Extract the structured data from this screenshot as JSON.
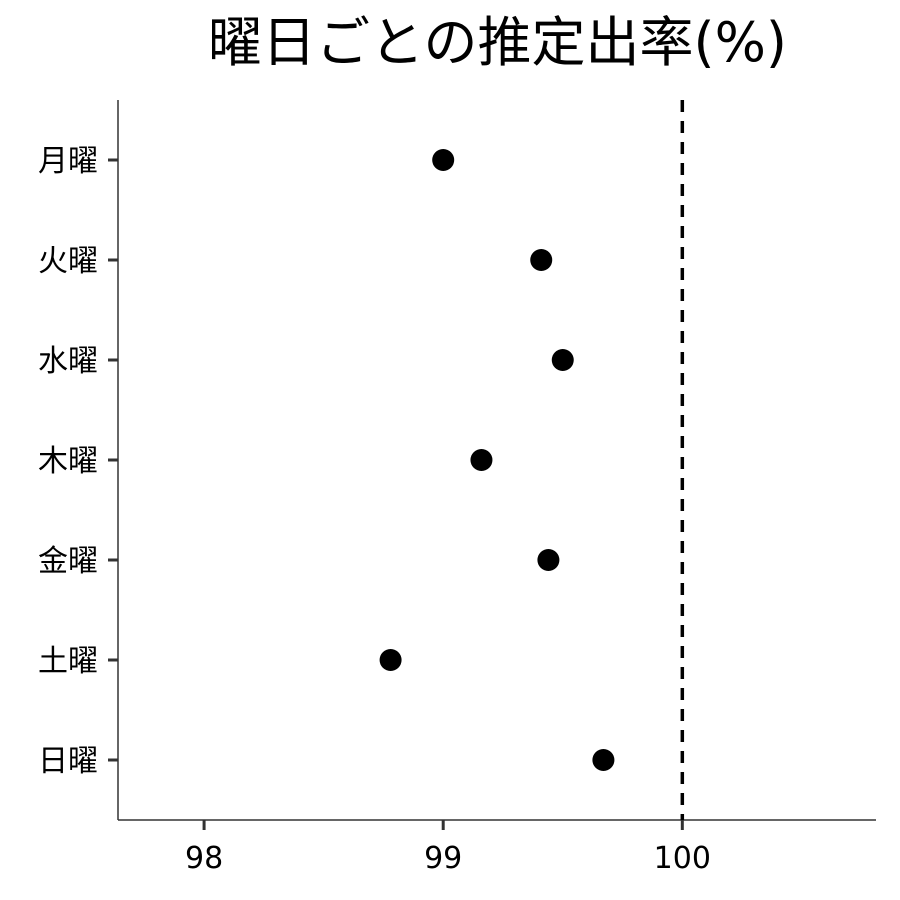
{
  "chart_data": {
    "type": "scatter",
    "title": "曜日ごとの推定出率(%)",
    "xlabel": "",
    "ylabel": "",
    "categories": [
      "月曜",
      "火曜",
      "水曜",
      "木曜",
      "金曜",
      "土曜",
      "日曜"
    ],
    "values": [
      99.0,
      99.41,
      99.5,
      99.16,
      99.44,
      98.78,
      99.67
    ],
    "xlim": [
      97.64,
      100.81
    ],
    "xticks": [
      "98",
      "99",
      "100"
    ],
    "reference_line": {
      "x": 100,
      "style": "dashed"
    },
    "grid": false,
    "point_color": "#000000"
  }
}
